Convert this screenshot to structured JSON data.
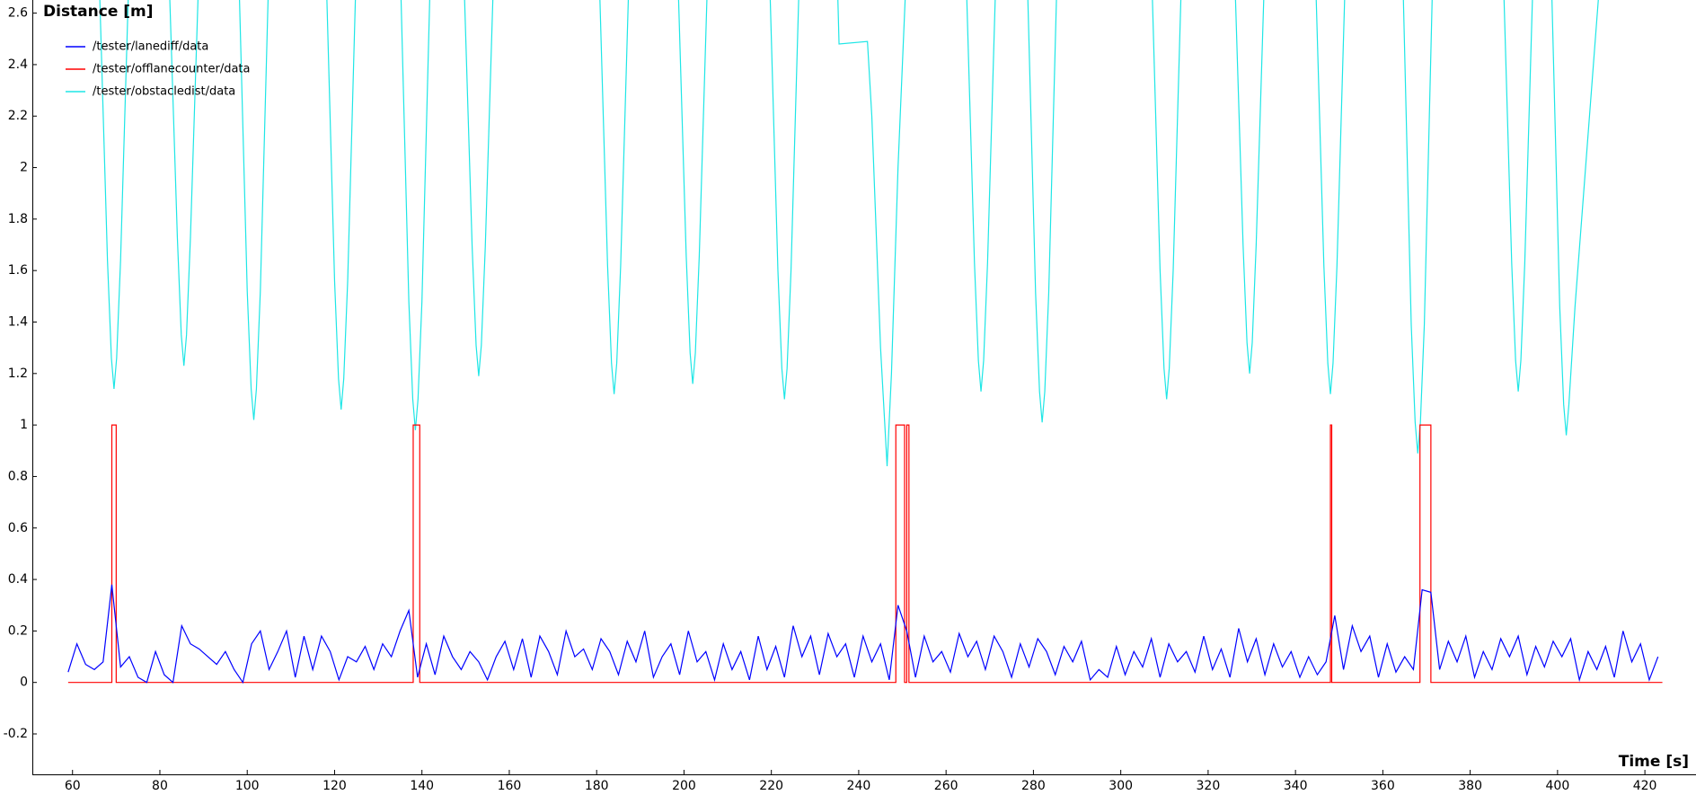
{
  "chart_data": {
    "type": "line",
    "ylabel": "Distance [m]",
    "xlabel": "Time [s]",
    "xlim": [
      50.8,
      431.7
    ],
    "ylim": [
      -0.357,
      2.651
    ],
    "xticks": [
      60,
      80,
      100,
      120,
      140,
      160,
      180,
      200,
      220,
      240,
      260,
      280,
      300,
      320,
      340,
      360,
      380,
      400,
      420
    ],
    "yticks": [
      -0.2,
      0,
      0.2,
      0.4,
      0.6,
      0.8,
      1,
      1.2,
      1.4,
      1.6,
      1.8,
      2,
      2.2,
      2.4,
      2.6
    ],
    "grid": false,
    "legend": "top-left",
    "series": [
      {
        "name": "/tester/lanediff/data",
        "color": "#0000ff",
        "x": [
          59,
          61,
          63,
          65,
          67,
          69,
          71,
          73,
          75,
          77,
          79,
          81,
          83,
          85,
          87,
          89,
          91,
          93,
          95,
          97,
          99,
          101,
          103,
          105,
          107,
          109,
          111,
          113,
          115,
          117,
          119,
          121,
          123,
          125,
          127,
          129,
          131,
          133,
          135,
          137,
          139,
          141,
          143,
          145,
          147,
          149,
          151,
          153,
          155,
          157,
          159,
          161,
          163,
          165,
          167,
          169,
          171,
          173,
          175,
          177,
          179,
          181,
          183,
          185,
          187,
          189,
          191,
          193,
          195,
          197,
          199,
          201,
          203,
          205,
          207,
          209,
          211,
          213,
          215,
          217,
          219,
          221,
          223,
          225,
          227,
          229,
          231,
          233,
          235,
          237,
          239,
          241,
          243,
          245,
          247,
          249,
          251,
          253,
          255,
          257,
          259,
          261,
          263,
          265,
          267,
          269,
          271,
          273,
          275,
          277,
          279,
          281,
          283,
          285,
          287,
          289,
          291,
          293,
          295,
          297,
          299,
          301,
          303,
          305,
          307,
          309,
          311,
          313,
          315,
          317,
          319,
          321,
          323,
          325,
          327,
          329,
          331,
          333,
          335,
          337,
          339,
          341,
          343,
          345,
          347,
          349,
          351,
          353,
          355,
          357,
          359,
          361,
          363,
          365,
          367,
          369,
          371,
          373,
          375,
          377,
          379,
          381,
          383,
          385,
          387,
          389,
          391,
          393,
          395,
          397,
          399,
          401,
          403,
          405,
          407,
          409,
          411,
          413,
          415,
          417,
          419,
          421,
          423
        ],
        "values": [
          0.04,
          0.15,
          0.07,
          0.05,
          0.08,
          0.38,
          0.06,
          0.1,
          0.02,
          0.0,
          0.12,
          0.03,
          0.0,
          0.22,
          0.15,
          0.13,
          0.1,
          0.07,
          0.12,
          0.05,
          0.0,
          0.15,
          0.2,
          0.05,
          0.12,
          0.2,
          0.02,
          0.18,
          0.05,
          0.18,
          0.12,
          0.01,
          0.1,
          0.08,
          0.14,
          0.05,
          0.15,
          0.1,
          0.2,
          0.28,
          0.02,
          0.15,
          0.03,
          0.18,
          0.1,
          0.05,
          0.12,
          0.08,
          0.01,
          0.1,
          0.16,
          0.05,
          0.17,
          0.02,
          0.18,
          0.12,
          0.03,
          0.2,
          0.1,
          0.13,
          0.05,
          0.17,
          0.12,
          0.03,
          0.16,
          0.08,
          0.2,
          0.02,
          0.1,
          0.15,
          0.03,
          0.2,
          0.08,
          0.12,
          0.01,
          0.15,
          0.05,
          0.12,
          0.01,
          0.18,
          0.05,
          0.14,
          0.02,
          0.22,
          0.1,
          0.18,
          0.03,
          0.19,
          0.1,
          0.15,
          0.02,
          0.18,
          0.08,
          0.15,
          0.01,
          0.3,
          0.2,
          0.02,
          0.18,
          0.08,
          0.12,
          0.04,
          0.19,
          0.1,
          0.16,
          0.05,
          0.18,
          0.12,
          0.02,
          0.15,
          0.06,
          0.17,
          0.12,
          0.03,
          0.14,
          0.08,
          0.16,
          0.01,
          0.05,
          0.02,
          0.14,
          0.03,
          0.12,
          0.06,
          0.17,
          0.02,
          0.15,
          0.08,
          0.12,
          0.04,
          0.18,
          0.05,
          0.13,
          0.02,
          0.21,
          0.08,
          0.17,
          0.03,
          0.15,
          0.06,
          0.12,
          0.02,
          0.1,
          0.03,
          0.08,
          0.26,
          0.05,
          0.22,
          0.12,
          0.18,
          0.02,
          0.15,
          0.04,
          0.1,
          0.05,
          0.36,
          0.35,
          0.05,
          0.16,
          0.08,
          0.18,
          0.02,
          0.12,
          0.05,
          0.17,
          0.1,
          0.18,
          0.03,
          0.14,
          0.06,
          0.16,
          0.1,
          0.17,
          0.01,
          0.12,
          0.05,
          0.14,
          0.02,
          0.2,
          0.08,
          0.15,
          0.01,
          0.1
        ]
      },
      {
        "name": "/tester/offlanecounter/data",
        "color": "#ff0000",
        "x": [
          59,
          69,
          69,
          70,
          70,
          138,
          138,
          139.5,
          139.5,
          248.5,
          248.5,
          250.5,
          250.5,
          251,
          251,
          251.5,
          251.5,
          348,
          348,
          348.3,
          348.3,
          368.5,
          368.5,
          371,
          371,
          424
        ],
        "values": [
          0,
          0,
          1,
          1,
          0,
          0,
          1,
          1,
          0,
          0,
          1,
          1,
          0,
          0,
          1,
          1,
          0,
          0,
          1,
          1,
          0,
          0,
          1,
          1,
          0,
          0
        ]
      },
      {
        "name": "/tester/obstacledist/data",
        "color": "#1ee6e6",
        "x": [
          59,
          66,
          68,
          68.9,
          69.5,
          70.1,
          71,
          73,
          82,
          84,
          84.9,
          85.5,
          86.1,
          87,
          89,
          98,
          100,
          100.9,
          101.5,
          102.1,
          103,
          105,
          118,
          120,
          120.9,
          121.5,
          122.1,
          123,
          125,
          135,
          137,
          137.9,
          138.5,
          139.1,
          140,
          142,
          149.5,
          151.5,
          152.4,
          153,
          153.6,
          154.5,
          156.5,
          180.5,
          182.5,
          183.4,
          184,
          184.6,
          185.5,
          187.5,
          198.5,
          200.5,
          201.4,
          202,
          202.6,
          203.5,
          205.5,
          219.5,
          221.5,
          222.4,
          223,
          223.6,
          224.5,
          226.5,
          235,
          235.5,
          242,
          243,
          245,
          246.5,
          247.5,
          249,
          251,
          264.5,
          266.5,
          267.4,
          268,
          268.6,
          269.5,
          271.5,
          278.5,
          280.5,
          281.4,
          282,
          282.6,
          283.5,
          285.5,
          307,
          309,
          309.9,
          310.5,
          311.1,
          312,
          314,
          326,
          328,
          328.9,
          329.5,
          330.1,
          331,
          333,
          344.5,
          346.5,
          347.4,
          348,
          348.6,
          349.5,
          351.5,
          364.5,
          366.5,
          367.4,
          368,
          368.6,
          369.5,
          371.5,
          387.5,
          389.5,
          390.4,
          391,
          391.6,
          392.5,
          394.5,
          398.5,
          400.5,
          401.4,
          402,
          402.6,
          404,
          410,
          424
        ],
        "values": [
          2.8,
          2.8,
          1.64,
          1.26,
          1.14,
          1.26,
          1.64,
          2.8,
          2.8,
          1.73,
          1.35,
          1.23,
          1.35,
          1.73,
          2.8,
          2.8,
          1.52,
          1.14,
          1.02,
          1.14,
          1.52,
          2.8,
          2.8,
          1.56,
          1.18,
          1.06,
          1.18,
          1.56,
          2.8,
          2.8,
          1.48,
          1.1,
          0.98,
          1.1,
          1.48,
          2.8,
          2.8,
          1.69,
          1.31,
          1.19,
          1.31,
          1.69,
          2.8,
          2.8,
          1.62,
          1.24,
          1.12,
          1.24,
          1.62,
          2.8,
          2.8,
          1.66,
          1.28,
          1.16,
          1.28,
          1.66,
          2.8,
          2.8,
          1.6,
          1.22,
          1.1,
          1.22,
          1.6,
          2.8,
          2.8,
          2.48,
          2.49,
          2.2,
          1.3,
          0.84,
          1.2,
          2.0,
          2.8,
          2.8,
          1.63,
          1.25,
          1.13,
          1.25,
          1.63,
          2.8,
          2.8,
          1.51,
          1.13,
          1.01,
          1.13,
          1.51,
          2.8,
          2.8,
          1.6,
          1.22,
          1.1,
          1.22,
          1.6,
          2.8,
          2.8,
          1.7,
          1.32,
          1.2,
          1.32,
          1.7,
          2.8,
          2.8,
          1.62,
          1.24,
          1.12,
          1.24,
          1.62,
          2.8,
          2.8,
          1.39,
          1.01,
          0.89,
          1.01,
          1.39,
          2.8,
          2.8,
          1.63,
          1.25,
          1.13,
          1.25,
          1.63,
          2.8,
          2.8,
          1.46,
          1.08,
          0.96,
          1.08,
          1.46,
          2.8,
          2.8
        ]
      }
    ]
  }
}
